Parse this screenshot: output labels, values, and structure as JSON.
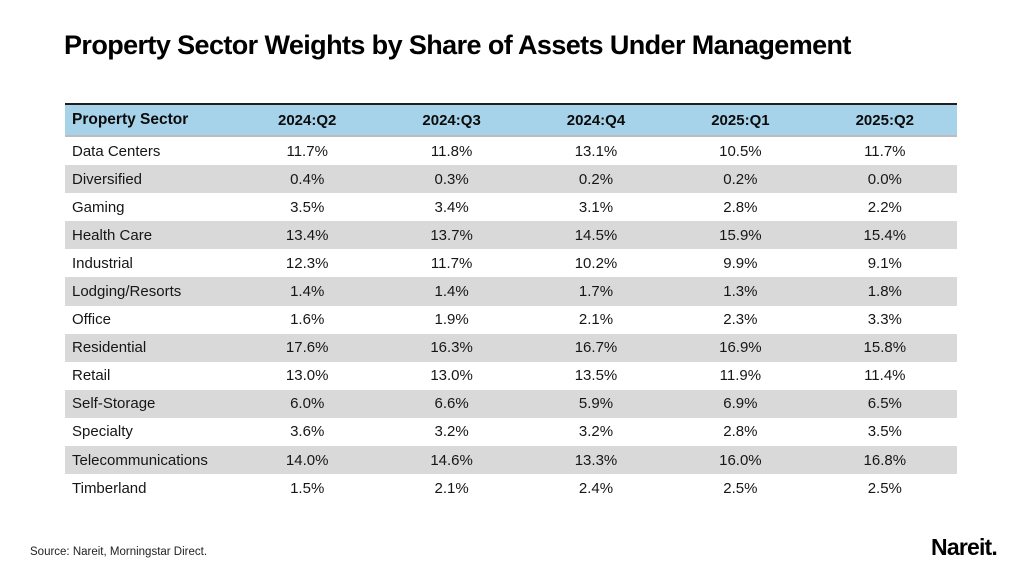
{
  "title": "Property Sector Weights by Share of Assets Under Management",
  "table": {
    "sector_header": "Property Sector",
    "period_headers": [
      "2024:Q2",
      "2024:Q3",
      "2024:Q4",
      "2025:Q1",
      "2025:Q2"
    ],
    "rows": [
      {
        "sector": "Data Centers",
        "values": [
          "11.7%",
          "11.8%",
          "13.1%",
          "10.5%",
          "11.7%"
        ]
      },
      {
        "sector": "Diversified",
        "values": [
          "0.4%",
          "0.3%",
          "0.2%",
          "0.2%",
          "0.0%"
        ]
      },
      {
        "sector": "Gaming",
        "values": [
          "3.5%",
          "3.4%",
          "3.1%",
          "2.8%",
          "2.2%"
        ]
      },
      {
        "sector": "Health Care",
        "values": [
          "13.4%",
          "13.7%",
          "14.5%",
          "15.9%",
          "15.4%"
        ]
      },
      {
        "sector": "Industrial",
        "values": [
          "12.3%",
          "11.7%",
          "10.2%",
          "9.9%",
          "9.1%"
        ]
      },
      {
        "sector": "Lodging/Resorts",
        "values": [
          "1.4%",
          "1.4%",
          "1.7%",
          "1.3%",
          "1.8%"
        ]
      },
      {
        "sector": "Office",
        "values": [
          "1.6%",
          "1.9%",
          "2.1%",
          "2.3%",
          "3.3%"
        ]
      },
      {
        "sector": "Residential",
        "values": [
          "17.6%",
          "16.3%",
          "16.7%",
          "16.9%",
          "15.8%"
        ]
      },
      {
        "sector": "Retail",
        "values": [
          "13.0%",
          "13.0%",
          "13.5%",
          "11.9%",
          "11.4%"
        ]
      },
      {
        "sector": "Self-Storage",
        "values": [
          "6.0%",
          "6.6%",
          "5.9%",
          "6.9%",
          "6.5%"
        ]
      },
      {
        "sector": "Specialty",
        "values": [
          "3.6%",
          "3.2%",
          "3.2%",
          "2.8%",
          "3.5%"
        ]
      },
      {
        "sector": "Telecommunications",
        "values": [
          "14.0%",
          "14.6%",
          "13.3%",
          "16.0%",
          "16.8%"
        ]
      },
      {
        "sector": "Timberland",
        "values": [
          "1.5%",
          "2.1%",
          "2.4%",
          "2.5%",
          "2.5%"
        ]
      }
    ]
  },
  "footer": {
    "source": "Source: Nareit, Morningstar Direct.",
    "logo": "Nareit."
  },
  "colors": {
    "header_bg": "#A6D3E9",
    "alt_row_bg": "#D9D9D9",
    "header_top_border": "#1F1F1F",
    "header_bottom_border": "#BDBDBD",
    "text": "#111111",
    "background": "#FFFFFF"
  },
  "chart_data": {
    "type": "table",
    "title": "Property Sector Weights by Share of Assets Under Management",
    "unit": "%",
    "categories": [
      "Data Centers",
      "Diversified",
      "Gaming",
      "Health Care",
      "Industrial",
      "Lodging/Resorts",
      "Office",
      "Residential",
      "Retail",
      "Self-Storage",
      "Specialty",
      "Telecommunications",
      "Timberland"
    ],
    "series": [
      {
        "name": "2024:Q2",
        "values": [
          11.7,
          0.4,
          3.5,
          13.4,
          12.3,
          1.4,
          1.6,
          17.6,
          13.0,
          6.0,
          3.6,
          14.0,
          1.5
        ]
      },
      {
        "name": "2024:Q3",
        "values": [
          11.8,
          0.3,
          3.4,
          13.7,
          11.7,
          1.4,
          1.9,
          16.3,
          13.0,
          6.6,
          3.2,
          14.6,
          2.1
        ]
      },
      {
        "name": "2024:Q4",
        "values": [
          13.1,
          0.2,
          3.1,
          14.5,
          10.2,
          1.7,
          2.1,
          16.7,
          13.5,
          5.9,
          3.2,
          13.3,
          2.4
        ]
      },
      {
        "name": "2025:Q1",
        "values": [
          10.5,
          0.2,
          2.8,
          15.9,
          9.9,
          1.3,
          2.3,
          16.9,
          11.9,
          6.9,
          2.8,
          16.0,
          2.5
        ]
      },
      {
        "name": "2025:Q2",
        "values": [
          11.7,
          0.0,
          2.2,
          15.4,
          9.1,
          1.8,
          3.3,
          15.8,
          11.4,
          6.5,
          3.5,
          16.8,
          2.5
        ]
      }
    ],
    "source": "Source: Nareit, Morningstar Direct."
  }
}
